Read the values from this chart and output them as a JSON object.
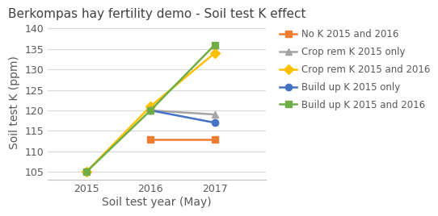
{
  "title": "Berkompas hay fertility demo - Soil test K effect",
  "xlabel": "Soil test year (May)",
  "ylabel": "Soil test K (ppm)",
  "years": [
    2015,
    2016,
    2017
  ],
  "series": [
    {
      "label": "No K 2015 and 2016",
      "values": [
        null,
        113,
        113
      ],
      "color": "#ED7D31",
      "marker": "s",
      "linestyle": "-"
    },
    {
      "label": "Crop rem K 2015 only",
      "values": [
        null,
        120,
        119
      ],
      "color": "#A5A5A5",
      "marker": "^",
      "linestyle": "-"
    },
    {
      "label": "Crop rem K 2015 and 2016",
      "values": [
        105,
        121,
        134
      ],
      "color": "#FFC000",
      "marker": "D",
      "linestyle": "-"
    },
    {
      "label": "Build up K 2015 only",
      "values": [
        null,
        120,
        117
      ],
      "color": "#4472C4",
      "marker": "o",
      "linestyle": "-"
    },
    {
      "label": "Build up K 2015 and 2016",
      "values": [
        105,
        120,
        136
      ],
      "color": "#70AD47",
      "marker": "s",
      "linestyle": "-"
    }
  ],
  "ylim": [
    103,
    141
  ],
  "yticks": [
    105,
    110,
    115,
    120,
    125,
    130,
    135,
    140
  ],
  "xticks": [
    2015,
    2016,
    2017
  ],
  "xlim": [
    2014.4,
    2017.8
  ],
  "background_color": "#FFFFFF",
  "grid_color": "#D9D9D9",
  "title_fontsize": 11,
  "label_fontsize": 10,
  "tick_fontsize": 9,
  "legend_fontsize": 8.5,
  "linewidth": 1.8,
  "markersize": 6
}
